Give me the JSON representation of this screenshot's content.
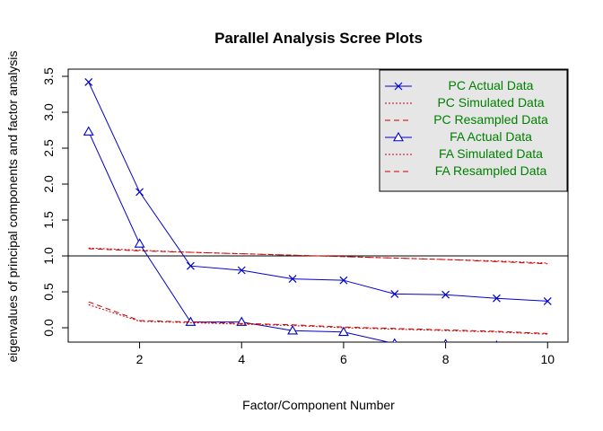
{
  "chart_data": {
    "type": "line",
    "title": "Parallel Analysis Scree Plots",
    "xlabel": "Factor/Component Number",
    "ylabel": "eigenvalues of principal components and factor analysis",
    "xlim": [
      0.6,
      10.4
    ],
    "ylim": [
      -0.2,
      3.6
    ],
    "x_ticks": [
      2,
      4,
      6,
      8,
      10
    ],
    "y_ticks": [
      0.0,
      0.5,
      1.0,
      1.5,
      2.0,
      2.5,
      3.0,
      3.5
    ],
    "x_tick_labels": [
      "2",
      "4",
      "6",
      "8",
      "10"
    ],
    "y_tick_labels": [
      "0.0",
      "0.5",
      "1.0",
      "1.5",
      "2.0",
      "2.5",
      "3.0",
      "3.5"
    ],
    "reference_line": 1.0,
    "x": [
      1,
      2,
      3,
      4,
      5,
      6,
      7,
      8,
      9,
      10
    ],
    "series": [
      {
        "name": "PC  Actual Data",
        "color": "#0000cc",
        "style": "solid",
        "marker": "x",
        "values": [
          3.42,
          1.89,
          0.86,
          0.8,
          0.68,
          0.66,
          0.47,
          0.46,
          0.41,
          0.37
        ]
      },
      {
        "name": "PC  Simulated Data",
        "color": "#cc0000",
        "style": "dotted",
        "marker": "none",
        "values": [
          1.11,
          1.08,
          1.05,
          1.03,
          1.01,
          0.99,
          0.97,
          0.95,
          0.93,
          0.9
        ]
      },
      {
        "name": "PC  Resampled Data",
        "color": "#cc0000",
        "style": "dashed",
        "marker": "none",
        "values": [
          1.1,
          1.07,
          1.05,
          1.03,
          1.01,
          0.99,
          0.97,
          0.95,
          0.92,
          0.89
        ]
      },
      {
        "name": "FA  Actual Data",
        "color": "#0000cc",
        "style": "solid",
        "marker": "triangle",
        "values": [
          2.73,
          1.17,
          0.08,
          0.08,
          -0.04,
          -0.06,
          -0.22,
          -0.23,
          -0.25,
          -0.27
        ]
      },
      {
        "name": "FA  Simulated Data",
        "color": "#cc0000",
        "style": "dotted",
        "marker": "none",
        "values": [
          0.32,
          0.09,
          0.07,
          0.05,
          0.03,
          0.0,
          -0.02,
          -0.04,
          -0.06,
          -0.09
        ]
      },
      {
        "name": "FA  Resampled Data",
        "color": "#cc0000",
        "style": "dashed",
        "marker": "none",
        "values": [
          0.36,
          0.1,
          0.08,
          0.06,
          0.04,
          0.01,
          -0.01,
          -0.03,
          -0.05,
          -0.08
        ]
      }
    ],
    "legend": {
      "position": "top-right",
      "background": "#e6e6e6",
      "text_color": "#008000"
    },
    "grid": false
  }
}
